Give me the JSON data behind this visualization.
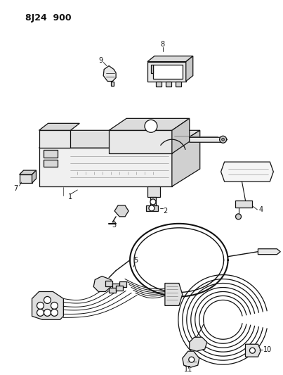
{
  "title_code": "8J24  900",
  "bg_color": "#ffffff",
  "line_color": "#111111",
  "fig_width": 4.03,
  "fig_height": 5.33,
  "dpi": 100
}
